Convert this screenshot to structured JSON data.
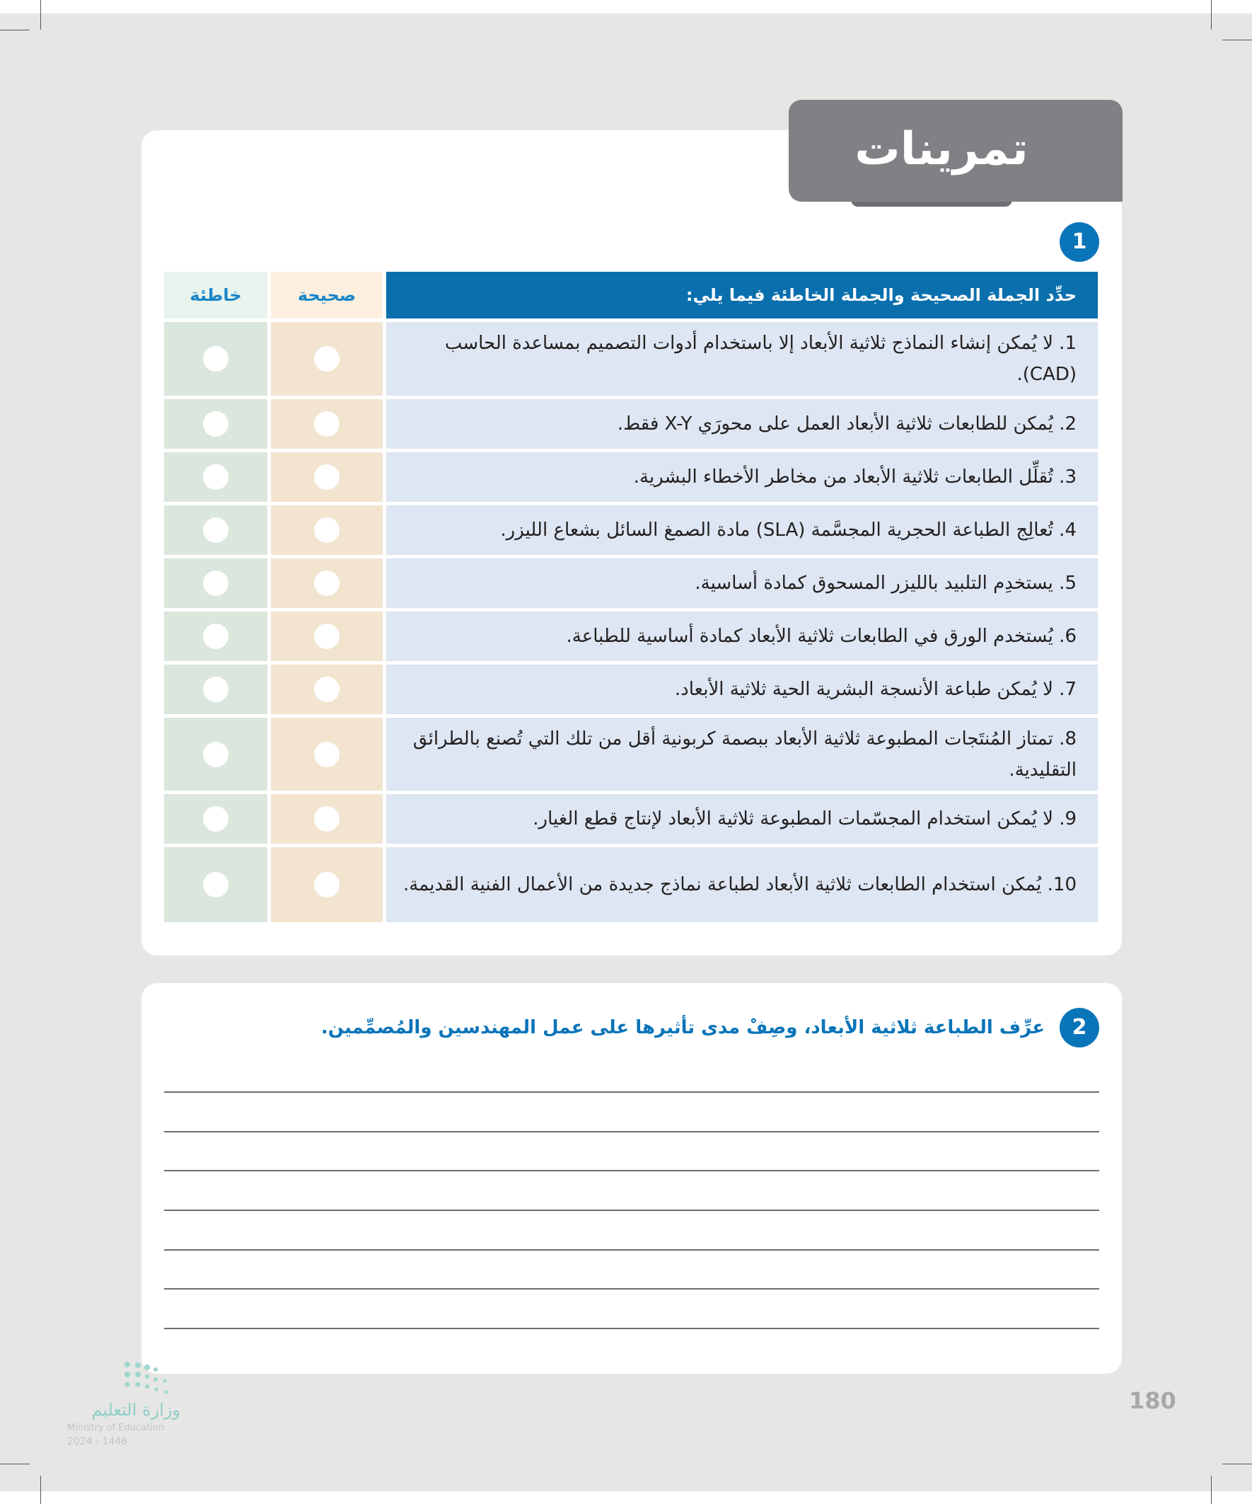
{
  "title": "تمرينات",
  "exercise1": {
    "number": "1",
    "header": {
      "statement": "حدِّد الجملة الصحيحة والجملة الخاطئة فيما يلي:",
      "true_label": "صحيحة",
      "false_label": "خاطئة"
    },
    "rows": [
      {
        "text": "1. لا يُمكن إنشاء النماذج ثلاثية الأبعاد إلا باستخدام أدوات التصميم بمساعدة الحاسب (CAD)."
      },
      {
        "text": "2. يُمكن للطابعات ثلاثية الأبعاد العمل على محورَي X-Y فقط."
      },
      {
        "text": "3. تُقلِّل الطابعات ثلاثية الأبعاد من مخاطر الأخطاء البشرية."
      },
      {
        "text": "4. تُعالِج الطباعة الحجرية المجسَّمة (SLA) مادة الصمغ السائل بشعاع الليزر."
      },
      {
        "text": "5. يستخدِم التلبيد بالليزر المسحوق كمادة أساسية."
      },
      {
        "text": "6. يُستخدم الورق في الطابعات ثلاثية الأبعاد كمادة أساسية للطباعة."
      },
      {
        "text": "7. لا يُمكن طباعة الأنسجة البشرية الحية ثلاثية الأبعاد."
      },
      {
        "text": "8. تمتاز المُنتَجات المطبوعة ثلاثية الأبعاد ببصمة كربونية أقل من تلك التي تُصنع بالطرائق التقليدية."
      },
      {
        "text": "9. لا يُمكن استخدام المجسّمات المطبوعة ثلاثية الأبعاد لإنتاج قطع الغيار."
      },
      {
        "text": "10. يُمكن استخدام الطابعات ثلاثية الأبعاد لطباعة نماذج جديدة من الأعمال الفنية القديمة."
      }
    ]
  },
  "exercise2": {
    "number": "2",
    "question": "عرِّف الطباعة ثلاثية الأبعاد، وصِفْ مدى تأثيرها على عمل المهندسين والمُصمِّمين."
  },
  "page_number": "180",
  "logo": {
    "arabic": "وزارة التعليم",
    "english": "Ministry of Education",
    "year": "2024 - 1446"
  },
  "colors": {
    "accent": "#0a74b9",
    "header": "#0a6fad",
    "title_tab": "#808184"
  }
}
